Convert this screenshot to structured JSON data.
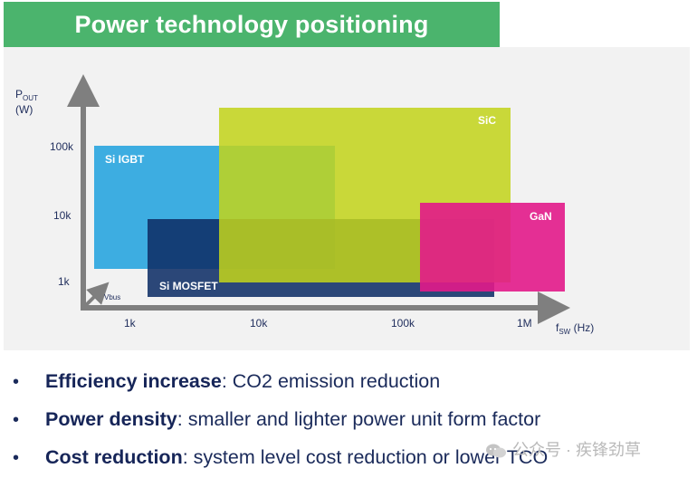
{
  "header": {
    "title": "Power technology positioning",
    "band_color": "#4bb46d"
  },
  "chart_data": {
    "type": "diagram",
    "y_axis": {
      "label_main": "P",
      "label_sub": "OUT",
      "label_unit": "(W)",
      "ticks": [
        {
          "label": "100k",
          "value": 100000
        },
        {
          "label": "10k",
          "value": 10000
        },
        {
          "label": "1k",
          "value": 1000
        }
      ]
    },
    "x_axis": {
      "label_main": "f",
      "label_sub": "SW",
      "label_unit": "(Hz)",
      "ticks": [
        {
          "label": "1k",
          "value": 1000
        },
        {
          "label": "10k",
          "value": 10000
        },
        {
          "label": "100k",
          "value": 100000
        },
        {
          "label": "1M",
          "value": 1000000
        }
      ]
    },
    "diagonal_label": "Vbus",
    "regions": [
      {
        "name": "Si IGBT",
        "color": "#2ea7e0",
        "x_range": [
          "<1k",
          "~30k"
        ],
        "y_range": [
          "~1k",
          "~100k"
        ]
      },
      {
        "name": "Si MOSFET",
        "color": "#0f2f66",
        "x_range": [
          "~2k",
          "~500k"
        ],
        "y_range": [
          "<1k",
          "~10k"
        ]
      },
      {
        "name": "SiC",
        "color": "#c0d21c",
        "x_range": [
          "~5k",
          "~500k"
        ],
        "y_range": [
          "~1k",
          ">100k"
        ]
      },
      {
        "name": "GaN",
        "color": "#e0218a",
        "x_range": [
          "~200k",
          ">1M"
        ],
        "y_range": [
          "<1k",
          "~10k"
        ]
      }
    ]
  },
  "bullets": [
    {
      "bold": "Efficiency increase",
      "rest": ": CO2 emission reduction"
    },
    {
      "bold": "Power density",
      "rest": ": smaller and lighter power unit form factor"
    },
    {
      "bold": "Cost reduction",
      "rest": ": system level cost reduction or lower TCO"
    }
  ],
  "bullet_symbol": "•",
  "watermark": {
    "text": "公众号 · 疾锋劲草",
    "icon": "wechat-icon"
  }
}
